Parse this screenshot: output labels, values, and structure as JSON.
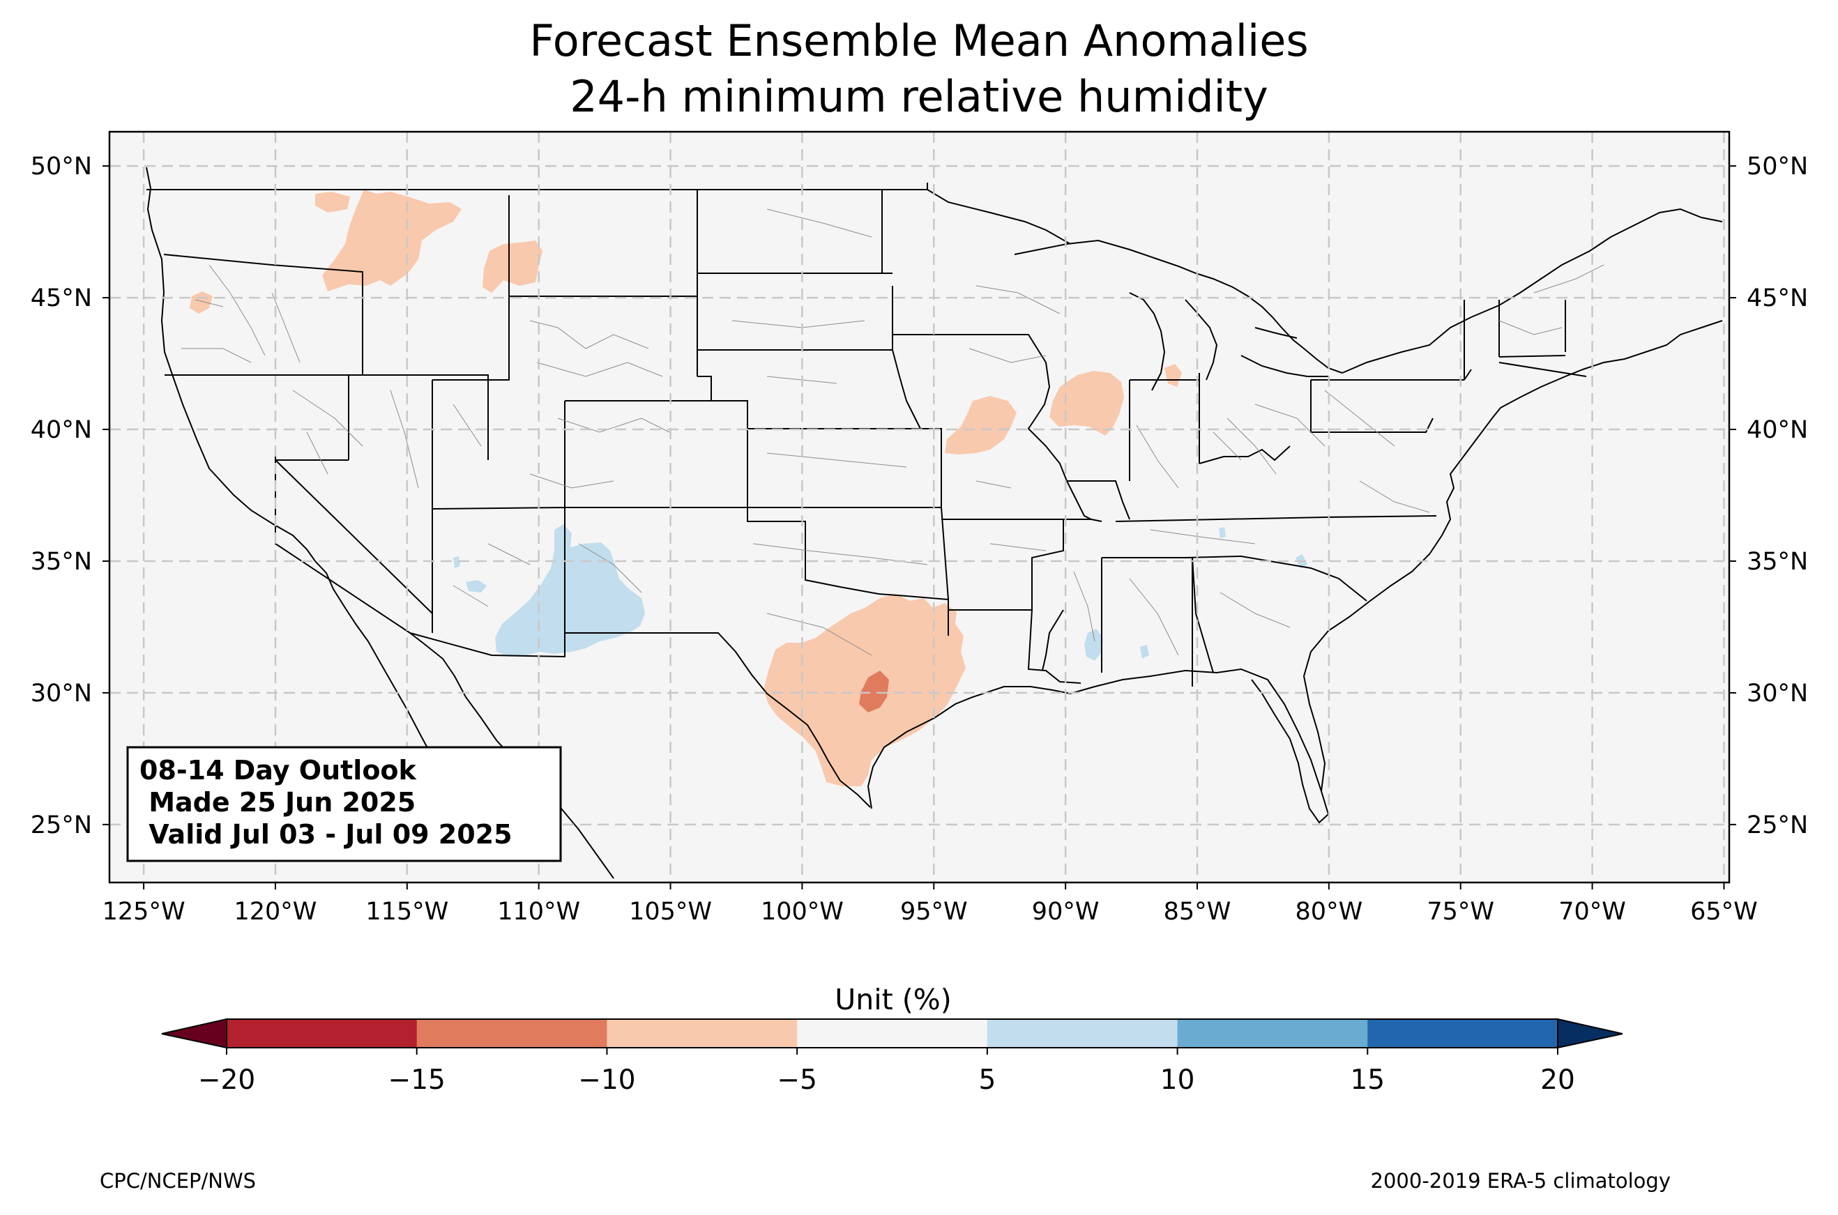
{
  "title": {
    "line1": "Forecast Ensemble Mean Anomalies",
    "line2": "24-h minimum relative humidity"
  },
  "map": {
    "lon_range": [
      -126.3,
      -64.8
    ],
    "lat_range": [
      22.8,
      51.3
    ],
    "background_color": "#f5f5f5",
    "lon_ticks": [
      {
        "value": -125,
        "label": "125°W"
      },
      {
        "value": -120,
        "label": "120°W"
      },
      {
        "value": -115,
        "label": "115°W"
      },
      {
        "value": -110,
        "label": "110°W"
      },
      {
        "value": -105,
        "label": "105°W"
      },
      {
        "value": -100,
        "label": "100°W"
      },
      {
        "value": -95,
        "label": "95°W"
      },
      {
        "value": -90,
        "label": "90°W"
      },
      {
        "value": -85,
        "label": "85°W"
      },
      {
        "value": -80,
        "label": "80°W"
      },
      {
        "value": -75,
        "label": "75°W"
      },
      {
        "value": -70,
        "label": "70°W"
      },
      {
        "value": -65,
        "label": "65°W"
      }
    ],
    "lat_ticks": [
      {
        "value": 50,
        "label": "50°N"
      },
      {
        "value": 45,
        "label": "45°N"
      },
      {
        "value": 40,
        "label": "40°N"
      },
      {
        "value": 35,
        "label": "35°N"
      },
      {
        "value": 30,
        "label": "30°N"
      },
      {
        "value": 25,
        "label": "25°N"
      }
    ],
    "anomaly_regions": [
      {
        "area": "Northern Rockies (Idaho/Montana)",
        "category": "-10 to -5",
        "color": "#f9c9ad"
      },
      {
        "area": "Western Montana",
        "category": "-10 to -5",
        "color": "#f9c9ad"
      },
      {
        "area": "Oregon coast",
        "category": "-10 to -5",
        "color": "#f9c9ad"
      },
      {
        "area": "Missouri/Iowa",
        "category": "-10 to -5",
        "color": "#f9c9ad"
      },
      {
        "area": "Illinois/Indiana",
        "category": "-10 to -5",
        "color": "#f9c9ad"
      },
      {
        "area": "Central & South Texas",
        "category": "-10 to -5",
        "color": "#f9c9ad"
      },
      {
        "area": "Central Texas core",
        "category": "-15 to -10",
        "color": "#e07b5e"
      },
      {
        "area": "New Mexico / Arizona",
        "category": "5 to 10",
        "color": "#c2dded"
      },
      {
        "area": "Southern Mississippi",
        "category": "5 to 10",
        "color": "#c2dded"
      }
    ]
  },
  "info_box": {
    "line1": "08-14 Day Outlook",
    "line2": " Made 25 Jun 2025",
    "line3": " Valid Jul 03 - Jul 09 2025"
  },
  "colorbar": {
    "label": "Unit (%)",
    "bounds": [
      -20,
      -15,
      -10,
      -5,
      5,
      10,
      15,
      20
    ],
    "tick_labels": [
      "−20",
      "−15",
      "−10",
      "−5",
      "5",
      "10",
      "15",
      "20"
    ],
    "colors": [
      "#b2212d",
      "#e07b5e",
      "#f9c9ad",
      "#f5f5f5",
      "#c2dded",
      "#6aabd2",
      "#2267ad"
    ],
    "under_color": "#67001f",
    "over_color": "#062e61"
  },
  "footer": {
    "left": "CPC/NCEP/NWS",
    "right": "2000-2019 ERA-5 climatology"
  }
}
